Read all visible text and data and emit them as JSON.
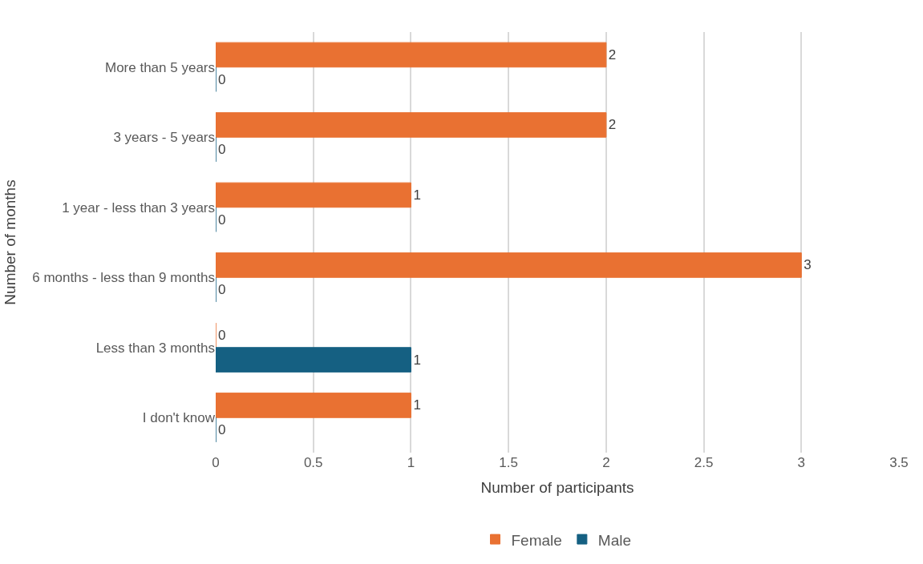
{
  "chart_data": {
    "type": "bar",
    "orientation": "horizontal",
    "xlabel": "Number of participants",
    "ylabel": "Number of months",
    "categories": [
      "More than 5 years",
      "3 years - 5 years",
      "1 year - less than 3 years",
      "6 months - less than 9 months",
      "Less than 3 months",
      "I don't know"
    ],
    "series": [
      {
        "name": "Female",
        "color": "#e97132",
        "values": [
          2,
          2,
          1,
          3,
          0,
          1
        ]
      },
      {
        "name": "Male",
        "color": "#156082",
        "values": [
          0,
          0,
          0,
          0,
          1,
          0
        ]
      }
    ],
    "xlim": [
      0,
      3.5
    ],
    "xticks": [
      0,
      0.5,
      1,
      1.5,
      2,
      2.5,
      3,
      3.5
    ],
    "grid": "x",
    "legend": "bottom",
    "data_labels": true
  }
}
